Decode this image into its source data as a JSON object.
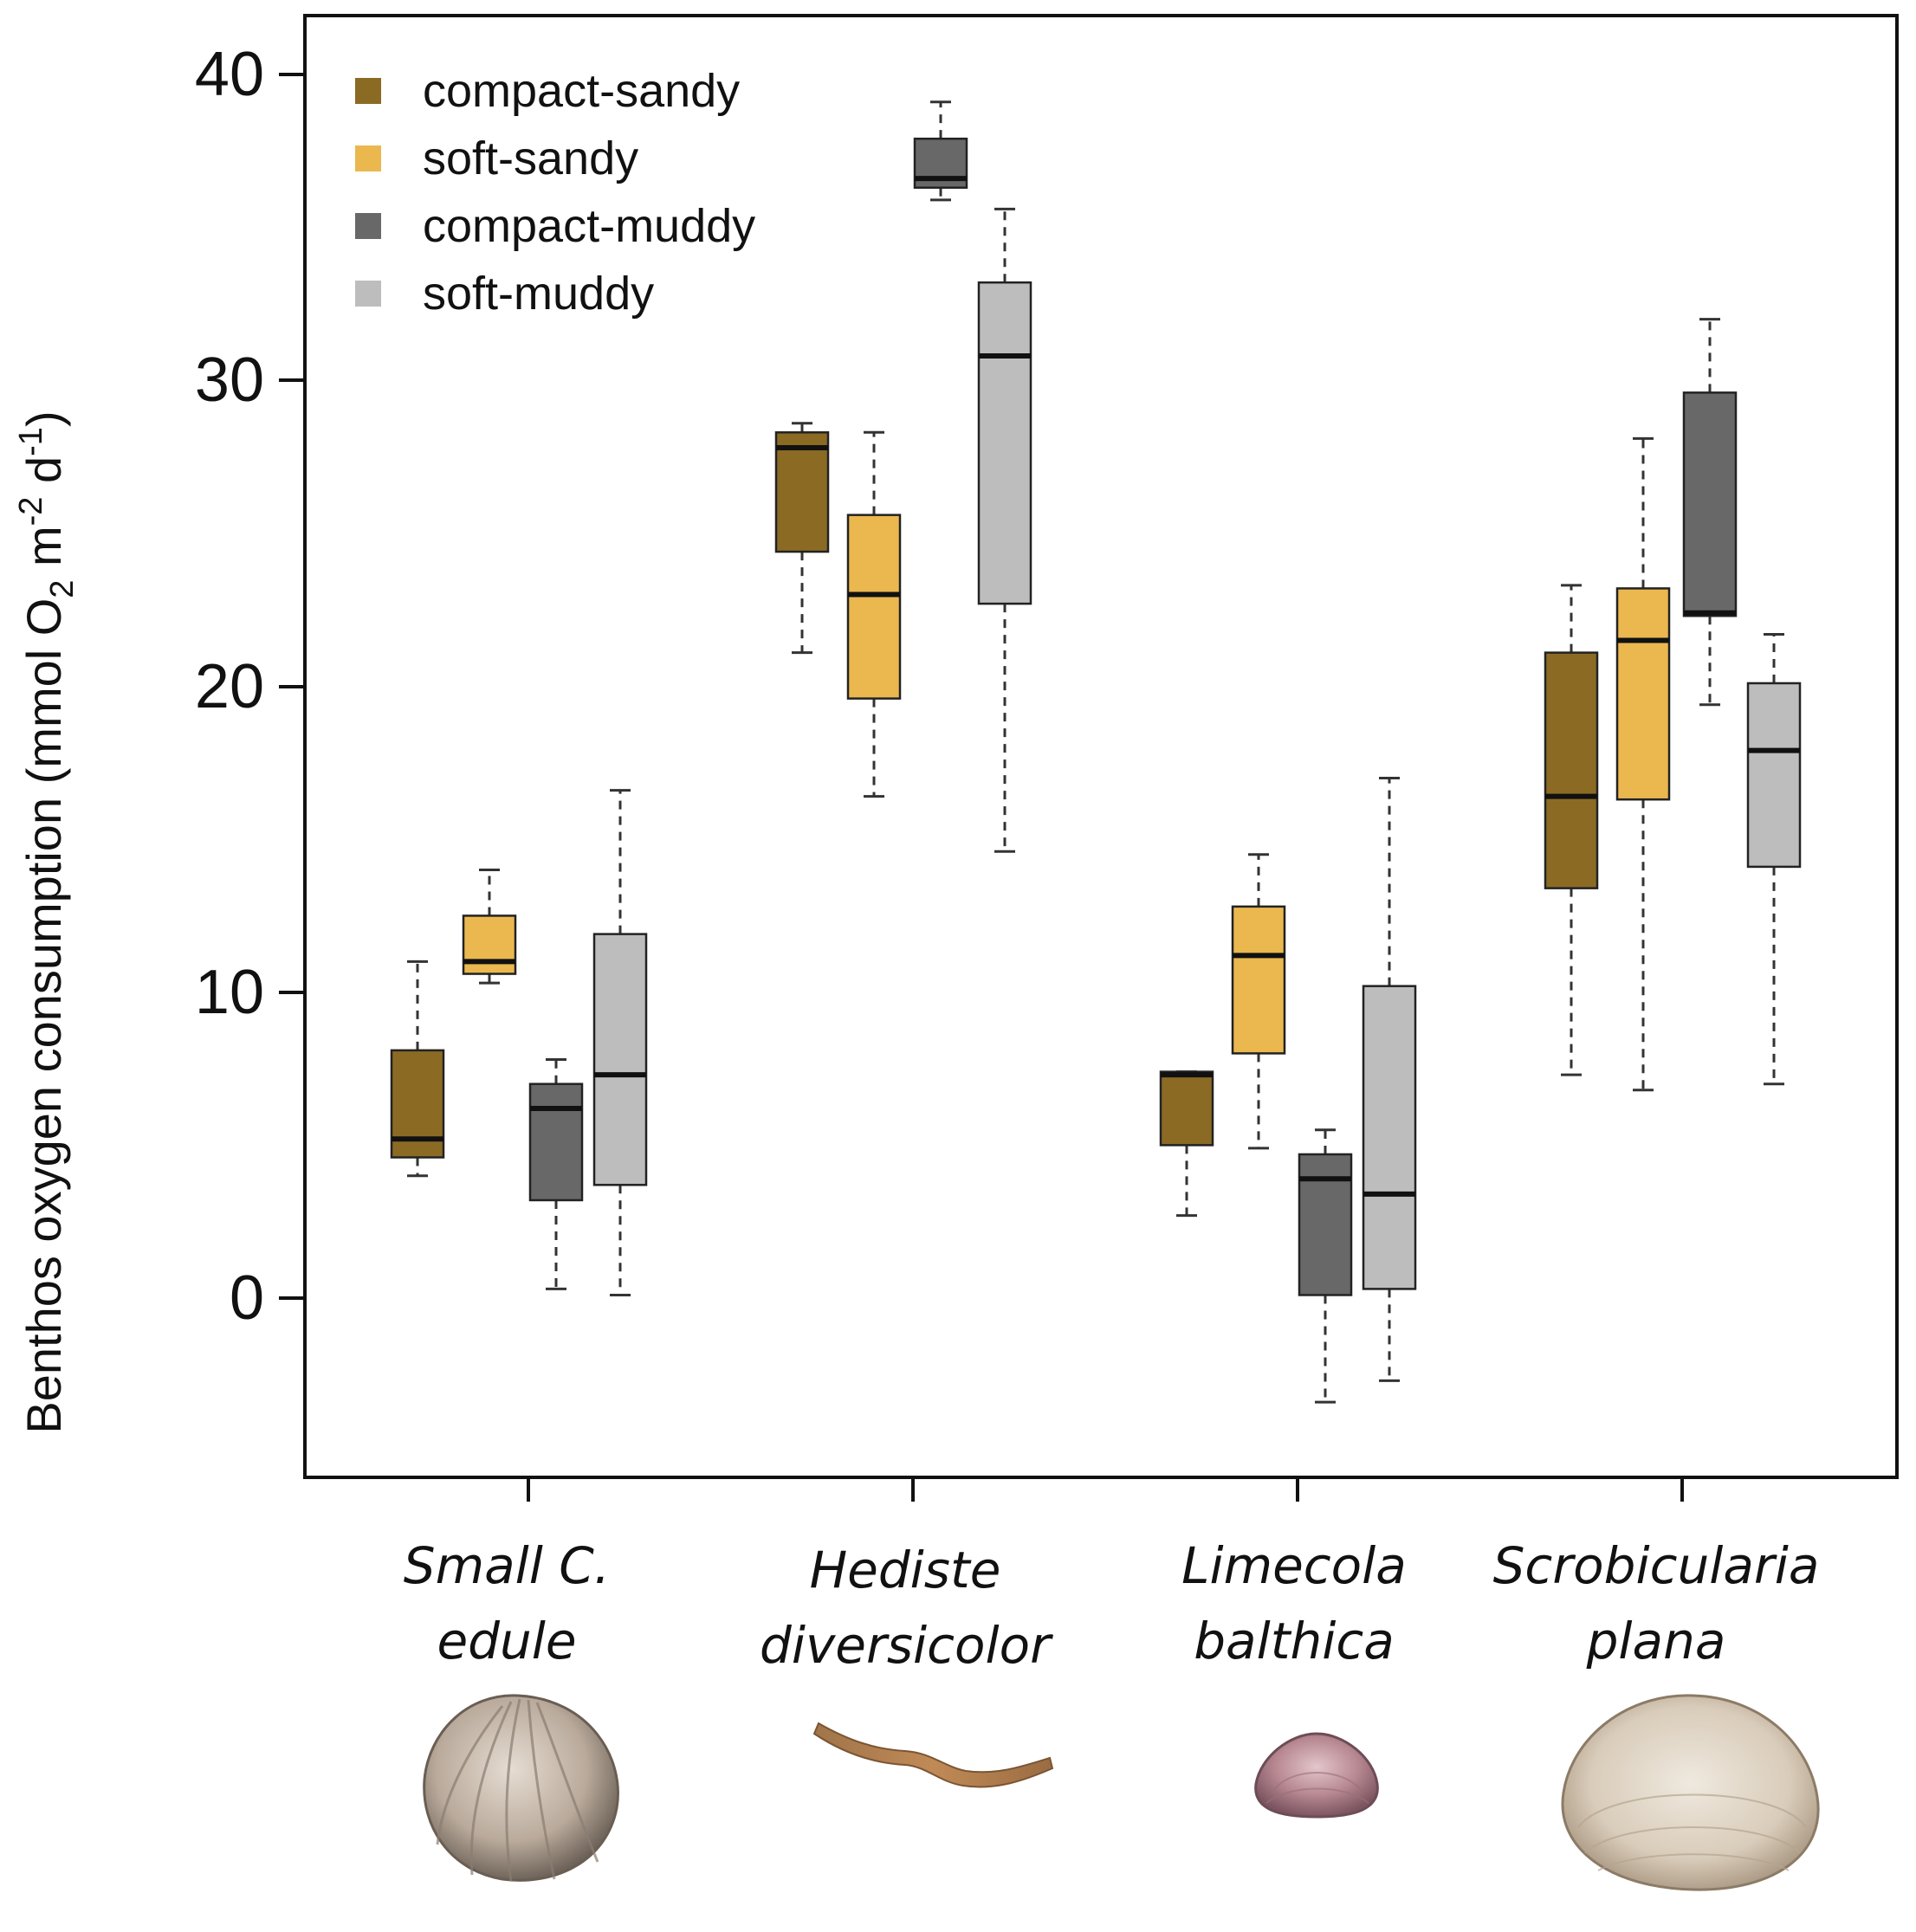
{
  "chart_data": {
    "type": "box",
    "ylabel": {
      "prefix": "Benthos oxygen consumption (mmol O",
      "sub": "2",
      "mid1": " m",
      "sup1": "-2",
      "mid2": " d",
      "sup2": "-1",
      "suffix": ")"
    },
    "ylim": [
      -5.8,
      41.8
    ],
    "yticks": [
      "0",
      "10",
      "20",
      "30",
      "40"
    ],
    "ytick_values": [
      0,
      10,
      20,
      30,
      40
    ],
    "categories": [
      {
        "line1": "Small C.",
        "line2": "edule"
      },
      {
        "line1": "Hediste",
        "line2": "diversicolor"
      },
      {
        "line1": "Limecola",
        "line2": "balthica"
      },
      {
        "line1": "Scrobicularia",
        "line2": "plana"
      }
    ],
    "legend": {
      "position": "top-left",
      "entries": [
        "compact-sandy",
        "soft-sandy",
        "compact-muddy",
        "soft-muddy"
      ]
    },
    "series": [
      {
        "name": "compact-sandy",
        "color": "#8b6a24",
        "boxes": [
          {
            "min": 4.0,
            "q1": 4.6,
            "median": 5.2,
            "q3": 8.1,
            "max": 11.0
          },
          {
            "min": 21.1,
            "q1": 24.4,
            "median": 27.8,
            "q3": 28.3,
            "max": 28.6
          },
          {
            "min": 2.7,
            "q1": 5.0,
            "median": 7.3,
            "q3": 7.4,
            "max": 7.4
          },
          {
            "min": 7.3,
            "q1": 13.4,
            "median": 16.4,
            "q3": 21.1,
            "max": 23.3
          }
        ]
      },
      {
        "name": "soft-sandy",
        "color": "#eab84f",
        "boxes": [
          {
            "min": 10.3,
            "q1": 10.6,
            "median": 11.0,
            "q3": 12.5,
            "max": 14.0
          },
          {
            "min": 16.4,
            "q1": 19.6,
            "median": 23.0,
            "q3": 25.6,
            "max": 28.3
          },
          {
            "min": 4.9,
            "q1": 8.0,
            "median": 11.2,
            "q3": 12.8,
            "max": 14.5
          },
          {
            "min": 6.8,
            "q1": 16.3,
            "median": 21.5,
            "q3": 23.2,
            "max": 28.1
          }
        ]
      },
      {
        "name": "compact-muddy",
        "color": "#686868",
        "boxes": [
          {
            "min": 0.3,
            "q1": 3.2,
            "median": 6.2,
            "q3": 7.0,
            "max": 7.8
          },
          {
            "min": 35.9,
            "q1": 36.3,
            "median": 36.6,
            "q3": 37.9,
            "max": 39.1
          },
          {
            "min": -3.4,
            "q1": 0.1,
            "median": 3.9,
            "q3": 4.7,
            "max": 5.5
          },
          {
            "min": 19.4,
            "q1": 22.3,
            "median": 22.4,
            "q3": 29.6,
            "max": 32.0
          }
        ]
      },
      {
        "name": "soft-muddy",
        "color": "#bdbdbd",
        "boxes": [
          {
            "min": 0.1,
            "q1": 3.7,
            "median": 7.3,
            "q3": 11.9,
            "max": 16.6
          },
          {
            "min": 14.6,
            "q1": 22.7,
            "median": 30.8,
            "q3": 33.2,
            "max": 35.6
          },
          {
            "min": -2.7,
            "q1": 0.3,
            "median": 3.4,
            "q3": 10.2,
            "max": 17.0
          },
          {
            "min": 7.0,
            "q1": 14.1,
            "median": 17.9,
            "q3": 20.1,
            "max": 21.7
          }
        ]
      }
    ]
  },
  "images": {
    "species": [
      "cockle-shell",
      "ragworm",
      "baltic-tellin-shell",
      "peppery-furrow-shell"
    ]
  }
}
